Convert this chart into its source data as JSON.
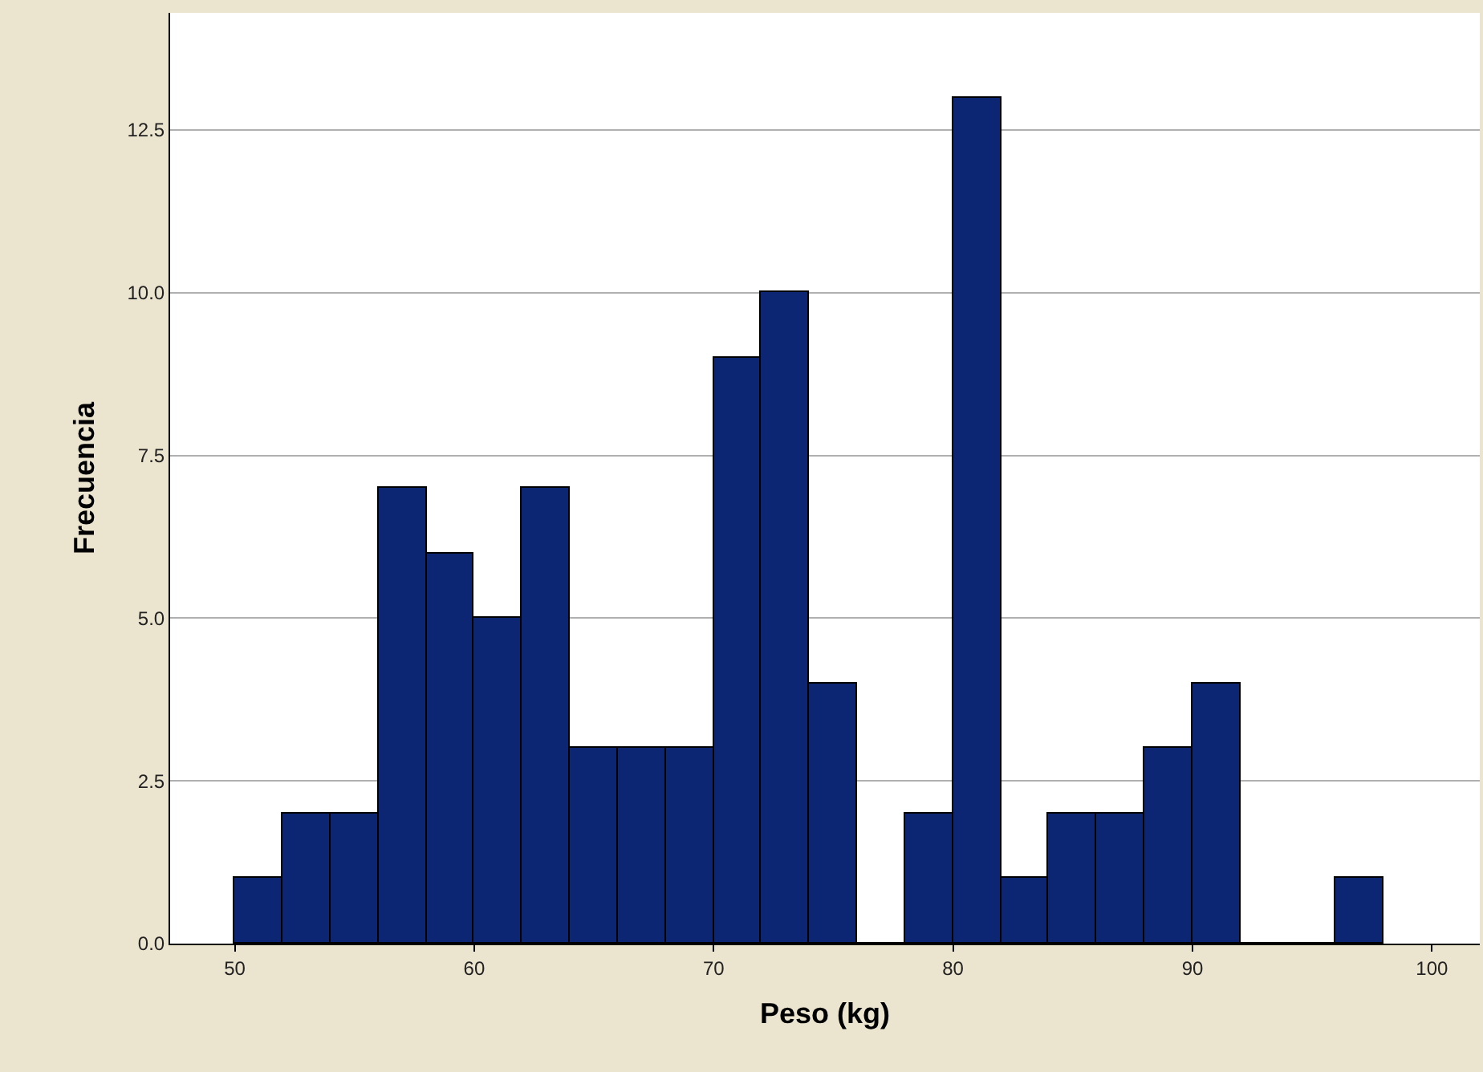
{
  "chart_data": {
    "type": "histogram",
    "xlabel": "Peso (kg)",
    "ylabel": "Frecuencia",
    "bins": [
      50,
      52,
      54,
      56,
      58,
      60,
      62,
      64,
      66,
      68,
      70,
      72,
      74,
      76,
      78,
      80,
      82,
      84,
      86,
      88,
      90,
      92,
      94,
      96,
      98
    ],
    "values": [
      1,
      2,
      2,
      7,
      6,
      5,
      7,
      3,
      3,
      3,
      9,
      10,
      4,
      0,
      2,
      13,
      1,
      2,
      2,
      3,
      4,
      0,
      0,
      1
    ],
    "color": "#0d2673",
    "xlim": [
      47.3,
      102
    ],
    "xticks": [
      50,
      60,
      70,
      80,
      90,
      100
    ],
    "ylim": [
      0,
      14.3
    ],
    "yticks": [
      {
        "value": 0,
        "label": "0.0"
      },
      {
        "value": 2.5,
        "label": "2.5"
      },
      {
        "value": 5,
        "label": "5.0"
      },
      {
        "value": 7.5,
        "label": "7.5"
      },
      {
        "value": 10,
        "label": "10.0"
      },
      {
        "value": 12.5,
        "label": "12.5"
      }
    ],
    "grid": "y"
  }
}
